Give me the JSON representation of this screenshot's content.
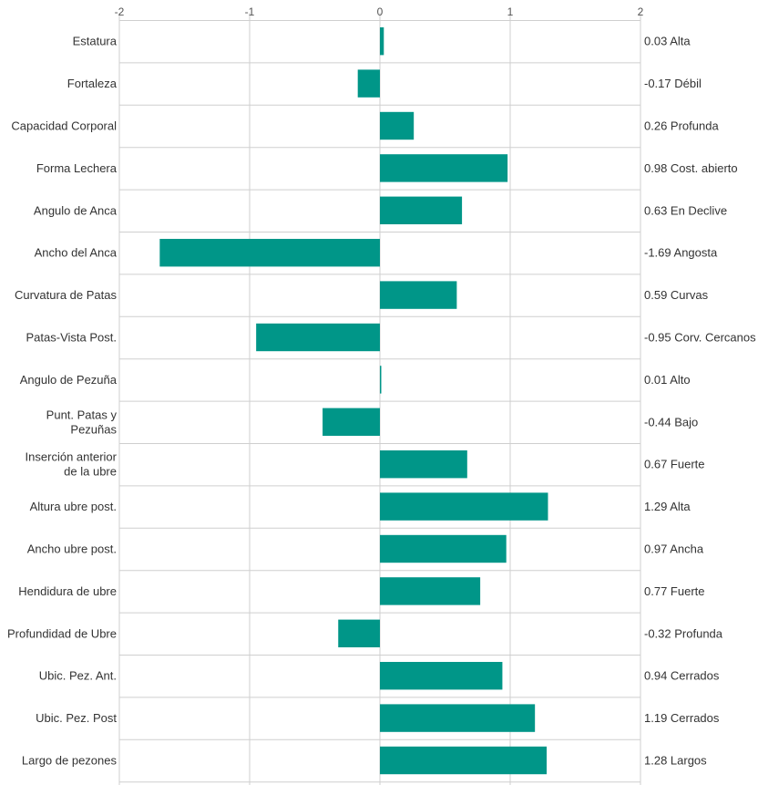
{
  "chart_data": {
    "type": "bar",
    "orientation": "horizontal",
    "title": "",
    "xlim": [
      -2,
      2
    ],
    "x_ticks": [
      "-2",
      "-1",
      "0",
      "1",
      "2"
    ],
    "grid": true,
    "bar_color": "#009688",
    "categories": [
      "Estatura",
      "Fortaleza",
      "Capacidad Corporal",
      "Forma Lechera",
      "Angulo de Anca",
      "Ancho del Anca",
      "Curvatura de Patas",
      "Patas-Vista Post.",
      "Angulo de Pezuña",
      "Punt. Patas y Pezuñas",
      "Inserción anterior de la ubre",
      "Altura ubre post.",
      "Ancho ubre post.",
      "Hendidura de ubre",
      "Profundidad de Ubre",
      "Ubic. Pez. Ant.",
      "Ubic. Pez. Post",
      "Largo de pezones"
    ],
    "values": [
      0.03,
      -0.17,
      0.26,
      0.98,
      0.63,
      -1.69,
      0.59,
      -0.95,
      0.01,
      -0.44,
      0.67,
      1.29,
      0.97,
      0.77,
      -0.32,
      0.94,
      1.19,
      1.28
    ],
    "value_labels": [
      "0.03 Alta",
      "-0.17 Débil",
      "0.26 Profunda",
      "0.98 Cost. abierto",
      "0.63 En Declive",
      "-1.69 Angosta",
      "0.59 Curvas",
      "-0.95 Corv. Cercanos",
      "0.01 Alto",
      "-0.44 Bajo",
      "0.67 Fuerte",
      "1.29 Alta",
      "0.97 Ancha",
      "0.77 Fuerte",
      "-0.32 Profunda",
      "0.94 Cerrados",
      "1.19 Cerrados",
      "1.28 Largos"
    ]
  }
}
